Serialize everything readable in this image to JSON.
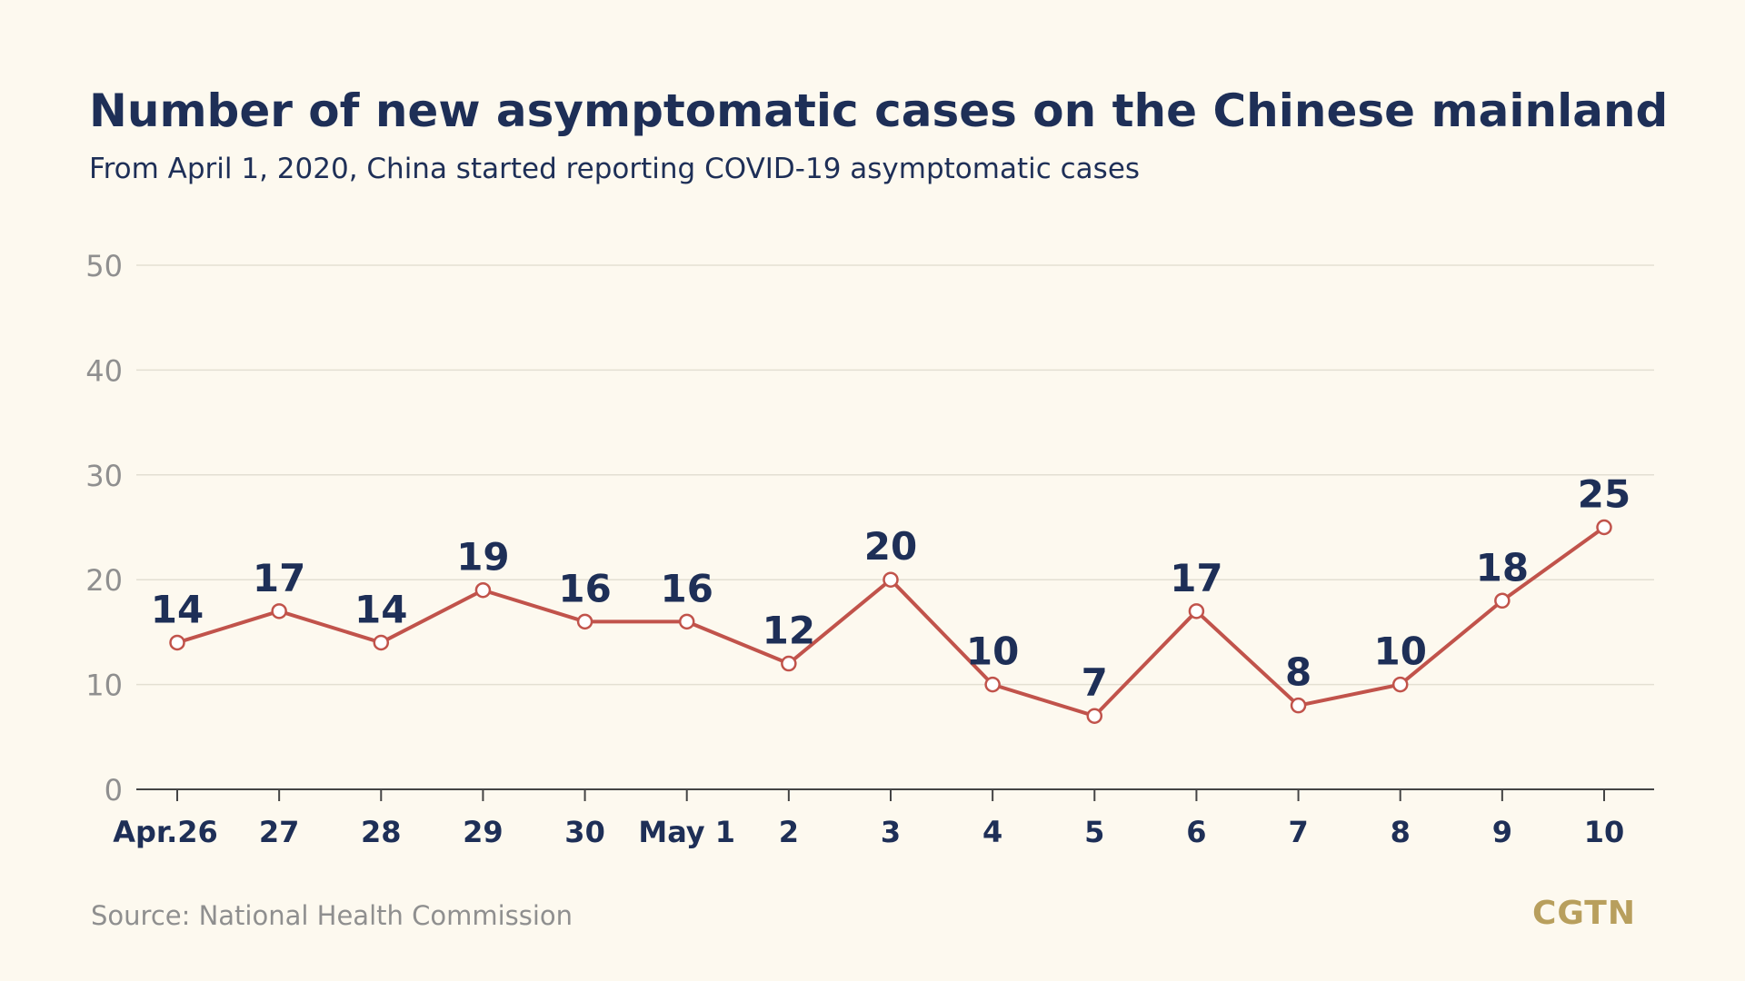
{
  "header": {
    "title": "Number of new asymptomatic cases on the Chinese mainland",
    "subtitle": "From April 1, 2020, China started reporting COVID-19 asymptomatic cases"
  },
  "footer": {
    "source": "Source: National Health Commission",
    "logo": "CGTN"
  },
  "colors": {
    "line": "#c1534b",
    "title": "#1e2f57",
    "axis_text": "#8f8f8f",
    "grid": "#e3dfd3",
    "background": "#fdf9ef",
    "logo": "#b89f5d"
  },
  "chart_data": {
    "type": "line",
    "title": "Number of new asymptomatic cases on the Chinese mainland",
    "subtitle": "From April 1, 2020, China started reporting COVID-19 asymptomatic cases",
    "xlabel": "",
    "ylabel": "",
    "categories": [
      "Apr.26",
      "27",
      "28",
      "29",
      "30",
      "May 1",
      "2",
      "3",
      "4",
      "5",
      "6",
      "7",
      "8",
      "9",
      "10"
    ],
    "series": [
      {
        "values": [
          14,
          17,
          14,
          19,
          16,
          16,
          12,
          20,
          10,
          7,
          17,
          8,
          10,
          18,
          25
        ],
        "labels": [
          "14",
          "17",
          "14",
          "19",
          "16",
          "16",
          "12",
          "20",
          "10",
          "7",
          "17",
          "8",
          "10",
          "18",
          "25"
        ]
      }
    ],
    "ylim": [
      0,
      50
    ],
    "yticks": [
      0,
      10,
      20,
      30,
      40,
      50
    ],
    "grid": true,
    "legend": "none"
  }
}
